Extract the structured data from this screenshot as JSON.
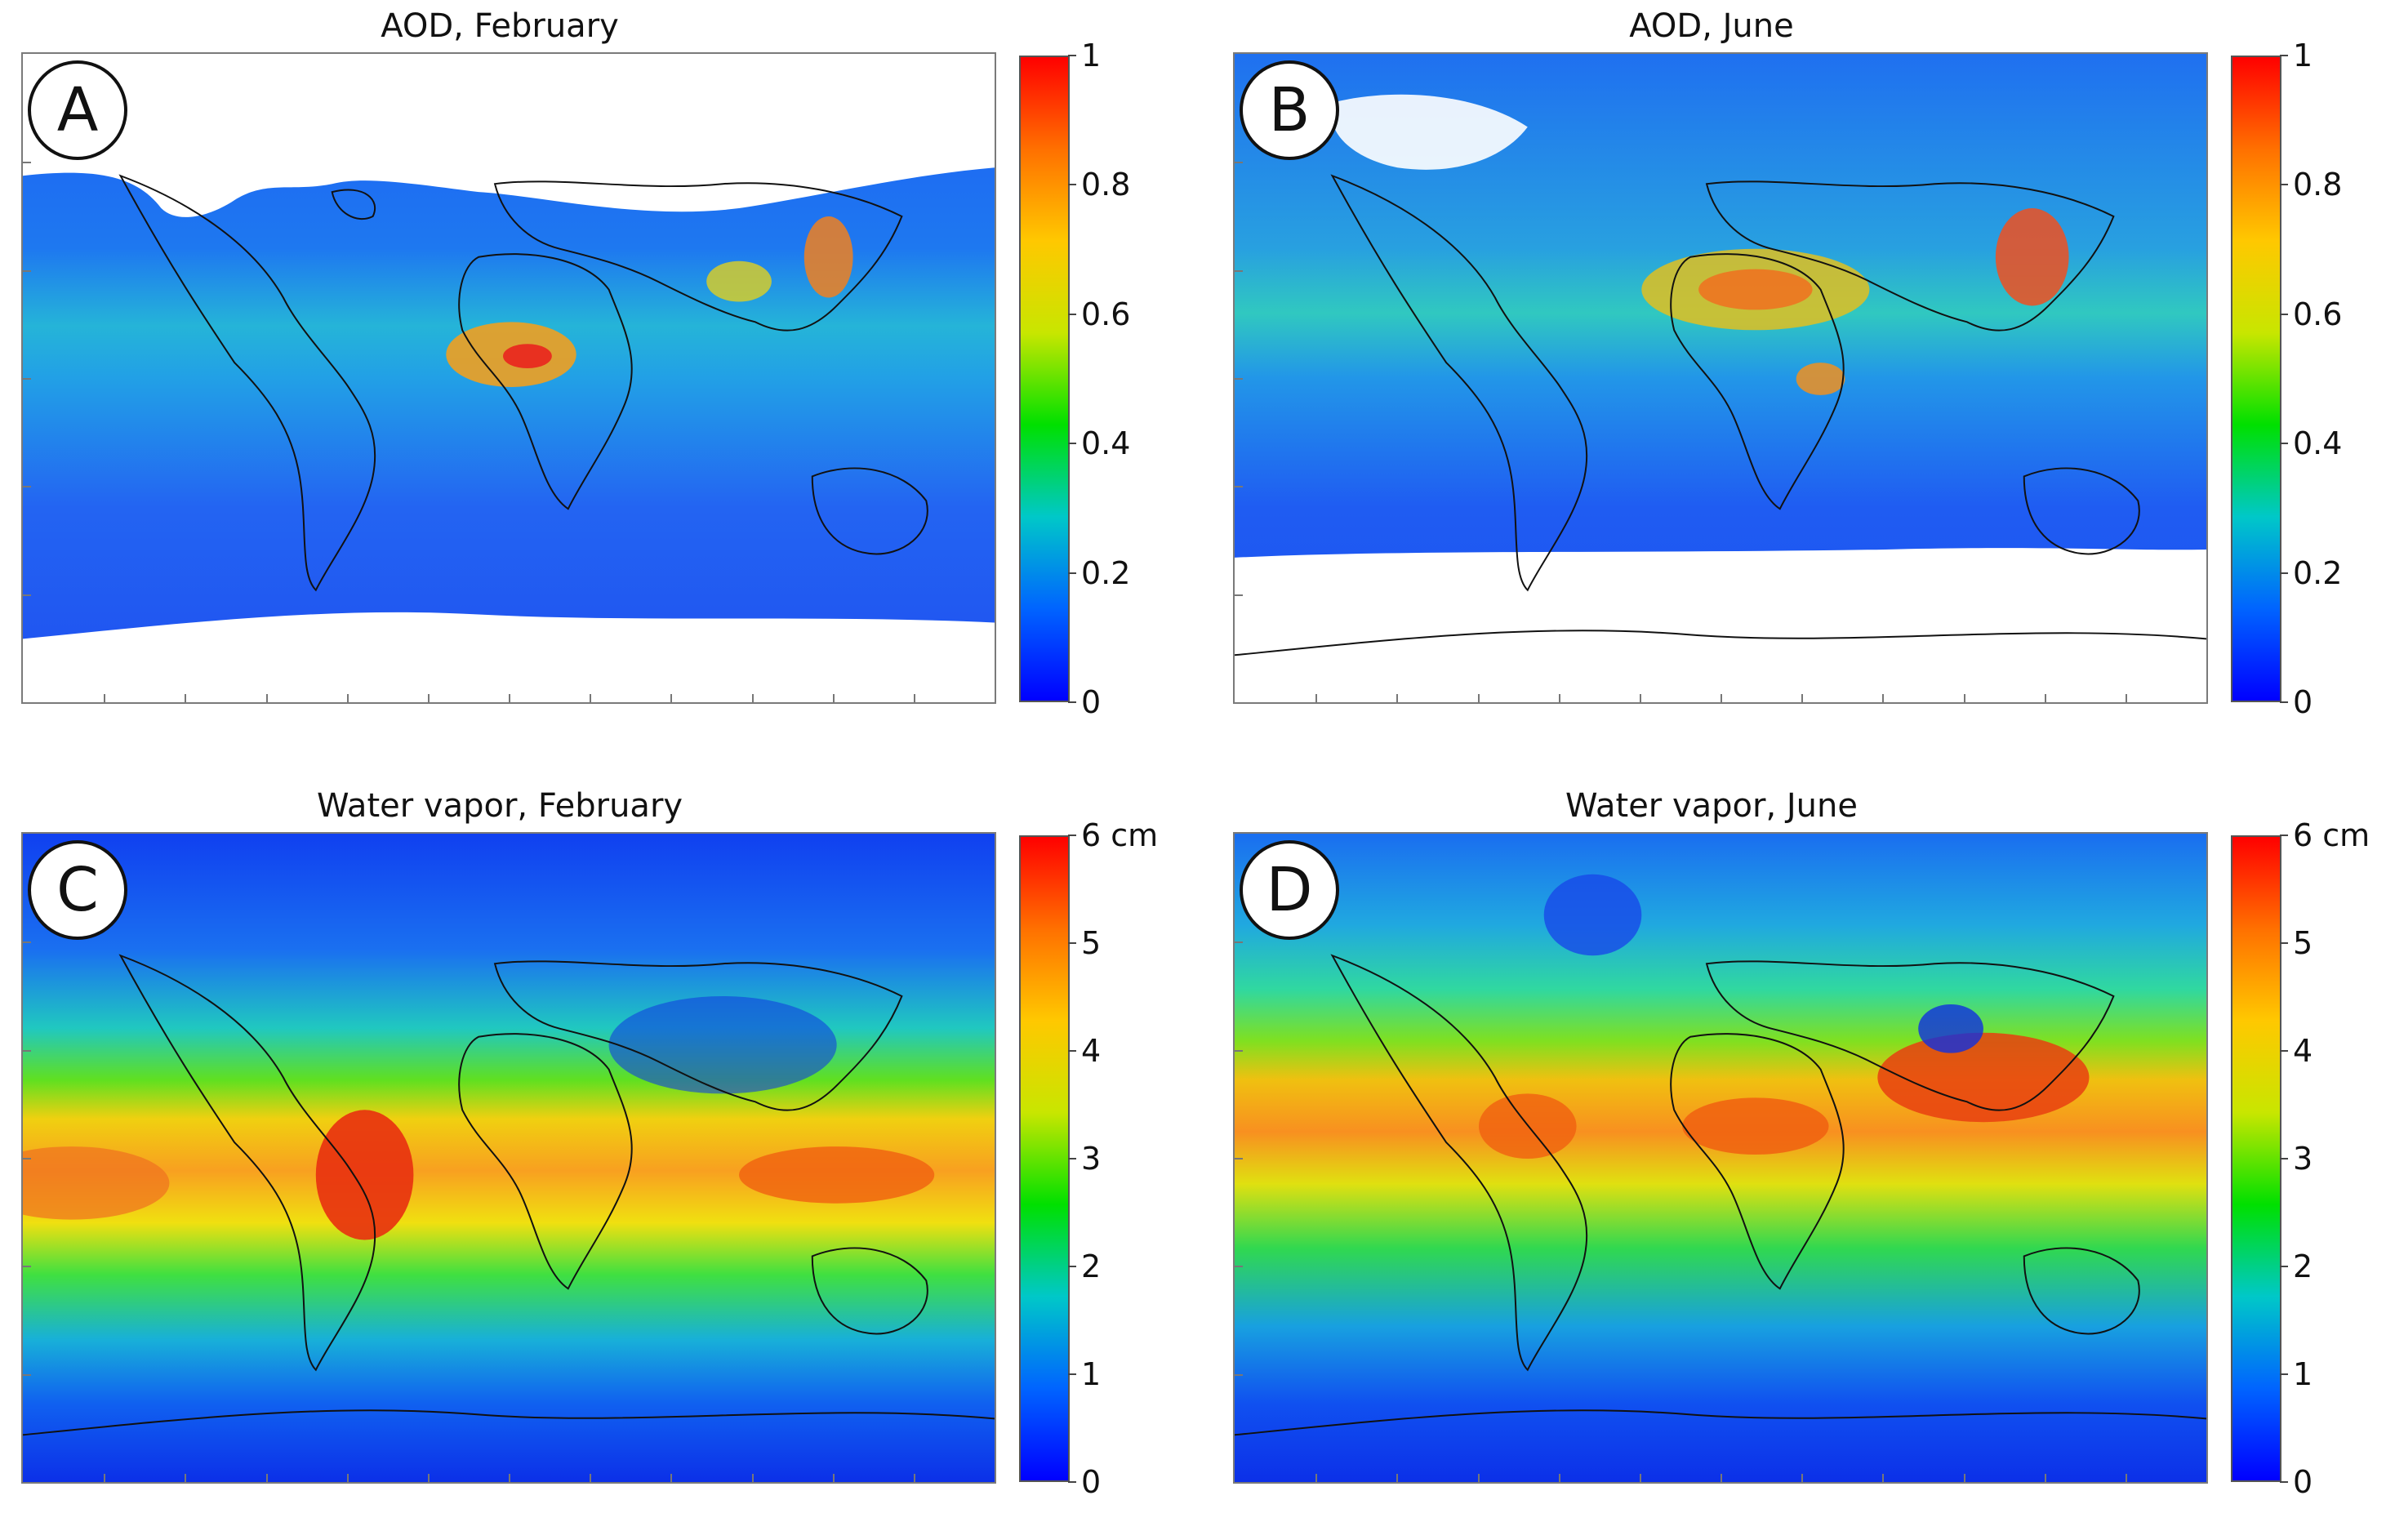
{
  "figure": {
    "colors": {
      "colorbar_stops": [
        "#0000ff",
        "#0064ff",
        "#00c8c8",
        "#00e000",
        "#c8e600",
        "#ffc800",
        "#ff7000",
        "#ff0000"
      ],
      "ocean_low": "#2856f0",
      "land_outline": "#111111",
      "no_data": "#ffffff"
    }
  },
  "panels": [
    {
      "badge": "A",
      "title": "AOD, February",
      "colorbar": {
        "ticks": [
          "0",
          "0.2",
          "0.4",
          "0.6",
          "0.8",
          "1"
        ],
        "min": 0,
        "max": 1
      }
    },
    {
      "badge": "B",
      "title": "AOD, June",
      "colorbar": {
        "ticks": [
          "0",
          "0.2",
          "0.4",
          "0.6",
          "0.8",
          "1"
        ],
        "min": 0,
        "max": 1
      }
    },
    {
      "badge": "C",
      "title": "Water vapor, February",
      "colorbar": {
        "ticks": [
          "0",
          "1",
          "2",
          "3",
          "4",
          "5",
          "6 cm"
        ],
        "min": 0,
        "max": 6
      }
    },
    {
      "badge": "D",
      "title": "Water vapor, June",
      "colorbar": {
        "ticks": [
          "0",
          "1",
          "2",
          "3",
          "4",
          "5",
          "6 cm"
        ],
        "min": 0,
        "max": 6
      }
    }
  ]
}
